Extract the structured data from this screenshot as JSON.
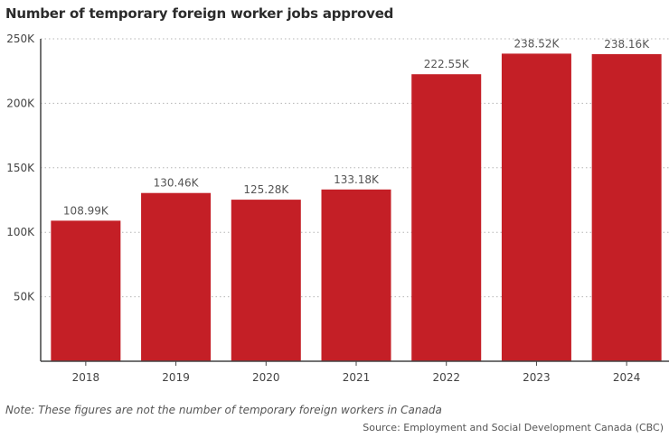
{
  "chart_data": {
    "type": "bar",
    "title": "Number of temporary foreign worker jobs approved",
    "categories": [
      "2018",
      "2019",
      "2020",
      "2021",
      "2022",
      "2023",
      "2024"
    ],
    "values": [
      108990,
      130460,
      125280,
      133180,
      222550,
      238520,
      238160
    ],
    "data_labels": [
      "108.99K",
      "130.46K",
      "125.28K",
      "133.18K",
      "222.55K",
      "238.52K",
      "238.16K"
    ],
    "y_ticks": [
      50000,
      100000,
      150000,
      200000,
      250000
    ],
    "y_tick_labels": [
      "50K",
      "100K",
      "150K",
      "200K",
      "250K"
    ],
    "ylim": [
      0,
      250000
    ],
    "xlabel": "",
    "ylabel": "",
    "grid": "horizontal-dotted",
    "bar_color": "#c41f26",
    "note": "Note: These figures are not the number of temporary foreign workers in Canada",
    "source": "Source: Employment and Social Development Canada (CBC)"
  }
}
